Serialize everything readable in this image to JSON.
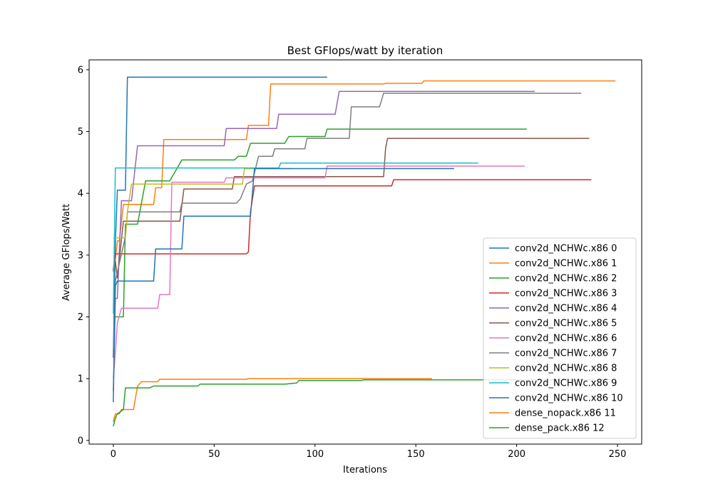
{
  "chart_data": {
    "type": "line",
    "title": "Best GFlops/watt by iteration",
    "xlabel": "Iterations",
    "ylabel": "Average GFlops/Watt",
    "xlim": [
      -12,
      262
    ],
    "ylim": [
      -0.06,
      6.16
    ],
    "xticks": [
      0,
      50,
      100,
      150,
      200,
      250
    ],
    "yticks": [
      0,
      1,
      2,
      3,
      4,
      5,
      6
    ],
    "grid": false,
    "legend_position": "lower-right",
    "series": [
      {
        "name": "conv2d_NCHWc.x86 0",
        "color": "#1f77b4",
        "points": [
          [
            0,
            1.34
          ],
          [
            1,
            3.2
          ],
          [
            2,
            4.05
          ],
          [
            6,
            4.05
          ],
          [
            7,
            5.88
          ],
          [
            106,
            5.88
          ]
        ]
      },
      {
        "name": "conv2d_NCHWc.x86 1",
        "color": "#ff7f0e",
        "points": [
          [
            0,
            2.75
          ],
          [
            1,
            2.92
          ],
          [
            2,
            3.23
          ],
          [
            3,
            3.23
          ],
          [
            5,
            3.82
          ],
          [
            20,
            3.82
          ],
          [
            21,
            4.09
          ],
          [
            24,
            4.09
          ],
          [
            25,
            4.87
          ],
          [
            66,
            4.87
          ],
          [
            67,
            5.1
          ],
          [
            77,
            5.1
          ],
          [
            78,
            5.77
          ],
          [
            134,
            5.77
          ],
          [
            135,
            5.78
          ],
          [
            153,
            5.78
          ],
          [
            154,
            5.82
          ],
          [
            249,
            5.82
          ]
        ]
      },
      {
        "name": "conv2d_NCHWc.x86 2",
        "color": "#2ca02c",
        "points": [
          [
            0,
            2.0
          ],
          [
            5,
            2.0
          ],
          [
            6,
            3.5
          ],
          [
            12,
            3.5
          ],
          [
            16,
            4.2
          ],
          [
            28,
            4.2
          ],
          [
            34,
            4.54
          ],
          [
            60,
            4.54
          ],
          [
            62,
            4.6
          ],
          [
            66,
            4.6
          ],
          [
            68,
            4.81
          ],
          [
            85,
            4.81
          ],
          [
            87,
            4.92
          ],
          [
            105,
            4.92
          ],
          [
            106,
            5.04
          ],
          [
            205,
            5.04
          ]
        ]
      },
      {
        "name": "conv2d_NCHWc.x86 3",
        "color": "#d62728",
        "points": [
          [
            0,
            2.76
          ],
          [
            1,
            3.02
          ],
          [
            66,
            3.02
          ],
          [
            67,
            3.05
          ],
          [
            68,
            3.7
          ],
          [
            70,
            4.12
          ],
          [
            138,
            4.12
          ],
          [
            139,
            4.22
          ],
          [
            237,
            4.22
          ]
        ]
      },
      {
        "name": "conv2d_NCHWc.x86 4",
        "color": "#9467bd",
        "points": [
          [
            0,
            0.8
          ],
          [
            1,
            2.3
          ],
          [
            2,
            2.3
          ],
          [
            4,
            3.88
          ],
          [
            9,
            3.88
          ],
          [
            12,
            4.77
          ],
          [
            55,
            4.77
          ],
          [
            56,
            5.05
          ],
          [
            81,
            5.05
          ],
          [
            82,
            5.28
          ],
          [
            110,
            5.28
          ],
          [
            112,
            5.65
          ],
          [
            209,
            5.65
          ]
        ]
      },
      {
        "name": "conv2d_NCHWc.x86 5",
        "color": "#8c564b",
        "points": [
          [
            0,
            2.73
          ],
          [
            1,
            2.9
          ],
          [
            2,
            2.63
          ],
          [
            5,
            3.55
          ],
          [
            33,
            3.55
          ],
          [
            35,
            4.07
          ],
          [
            59,
            4.07
          ],
          [
            60,
            4.27
          ],
          [
            134,
            4.27
          ],
          [
            135,
            4.73
          ],
          [
            136,
            4.89
          ],
          [
            236,
            4.89
          ]
        ]
      },
      {
        "name": "conv2d_NCHWc.x86 6",
        "color": "#e377c2",
        "points": [
          [
            0,
            1.0
          ],
          [
            1,
            1.42
          ],
          [
            2,
            1.9
          ],
          [
            4,
            2.14
          ],
          [
            22,
            2.14
          ],
          [
            23,
            2.36
          ],
          [
            28,
            2.36
          ],
          [
            29,
            4.18
          ],
          [
            55,
            4.18
          ],
          [
            56,
            4.25
          ],
          [
            105,
            4.25
          ],
          [
            106,
            4.44
          ],
          [
            204,
            4.44
          ]
        ]
      },
      {
        "name": "conv2d_NCHWc.x86 7",
        "color": "#7f7f7f",
        "points": [
          [
            0,
            1.34
          ],
          [
            1,
            2.58
          ],
          [
            6,
            3.3
          ],
          [
            7,
            3.7
          ],
          [
            33,
            3.7
          ],
          [
            34,
            3.84
          ],
          [
            61,
            3.84
          ],
          [
            63,
            3.91
          ],
          [
            66,
            4.15
          ],
          [
            69,
            4.2
          ],
          [
            72,
            4.6
          ],
          [
            79,
            4.6
          ],
          [
            80,
            4.72
          ],
          [
            95,
            4.72
          ],
          [
            96,
            4.89
          ],
          [
            117,
            4.89
          ],
          [
            118,
            5.4
          ],
          [
            132,
            5.4
          ],
          [
            134,
            5.62
          ],
          [
            232,
            5.62
          ]
        ]
      },
      {
        "name": "conv2d_NCHWc.x86 8",
        "color": "#bcbd22",
        "points": [
          [
            0,
            3.28
          ],
          [
            6,
            3.28
          ],
          [
            7,
            3.7
          ],
          [
            9,
            4.15
          ],
          [
            64,
            4.15
          ],
          [
            65,
            4.4
          ],
          [
            88,
            4.4
          ]
        ]
      },
      {
        "name": "conv2d_NCHWc.x86 9",
        "color": "#17becf",
        "points": [
          [
            0,
            2.05
          ],
          [
            1,
            4.41
          ],
          [
            82,
            4.41
          ],
          [
            83,
            4.49
          ],
          [
            181,
            4.49
          ]
        ]
      },
      {
        "name": "conv2d_NCHWc.x86 10",
        "color": "#1f77b4",
        "points": [
          [
            0,
            0.62
          ],
          [
            1,
            2.5
          ],
          [
            2,
            2.58
          ],
          [
            20,
            2.58
          ],
          [
            21,
            3.1
          ],
          [
            34,
            3.1
          ],
          [
            35,
            3.63
          ],
          [
            68,
            3.63
          ],
          [
            70,
            4.4
          ],
          [
            169,
            4.4
          ]
        ]
      },
      {
        "name": "dense_nopack.x86 11",
        "color": "#ff7f0e",
        "points": [
          [
            0,
            0.3
          ],
          [
            1,
            0.43
          ],
          [
            3,
            0.43
          ],
          [
            4,
            0.5
          ],
          [
            10,
            0.5
          ],
          [
            12,
            0.88
          ],
          [
            14,
            0.95
          ],
          [
            22,
            0.95
          ],
          [
            23,
            0.99
          ],
          [
            66,
            0.99
          ],
          [
            67,
            1.0
          ],
          [
            158,
            1.0
          ]
        ]
      },
      {
        "name": "dense_pack.x86 12",
        "color": "#2ca02c",
        "points": [
          [
            0,
            0.23
          ],
          [
            1,
            0.36
          ],
          [
            2,
            0.43
          ],
          [
            5,
            0.5
          ],
          [
            6,
            0.85
          ],
          [
            18,
            0.85
          ],
          [
            20,
            0.88
          ],
          [
            42,
            0.88
          ],
          [
            43,
            0.91
          ],
          [
            85,
            0.91
          ],
          [
            91,
            0.93
          ],
          [
            92,
            0.97
          ],
          [
            123,
            0.97
          ],
          [
            124,
            0.98
          ],
          [
            248,
            0.98
          ]
        ]
      }
    ]
  }
}
